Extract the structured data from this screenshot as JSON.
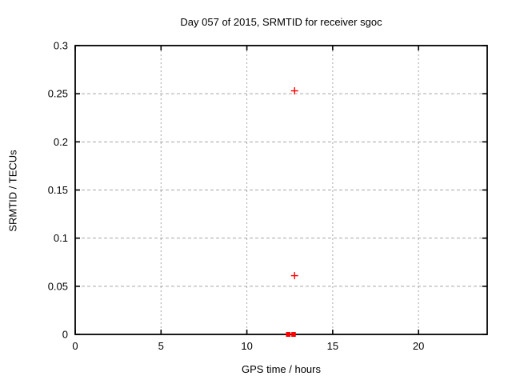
{
  "window": {
    "background_color": "#ffffff",
    "text_color": "#000000",
    "grid_color": "#a6a6a6",
    "border_color": "#000000"
  },
  "chart_data": {
    "type": "scatter",
    "title": "Day 057 of 2015, SRMTID for receiver sgoc",
    "xlabel": "GPS time / hours",
    "ylabel": "SRMTID / TECUs",
    "xlim": [
      0,
      24
    ],
    "ylim": [
      0,
      0.3
    ],
    "xticks": [
      0,
      5,
      10,
      15,
      20
    ],
    "xtick_labels": [
      "0",
      "5",
      "10",
      "15",
      "20"
    ],
    "yticks": [
      0,
      0.05,
      0.1,
      0.15,
      0.2,
      0.25,
      0.3
    ],
    "ytick_labels": [
      "0",
      "0.05",
      "0.1",
      "0.15",
      "0.2",
      "0.25",
      "0.3"
    ],
    "grid": true,
    "legend": null,
    "marker": "plus",
    "marker_color": "#ff0000",
    "series": [
      {
        "name": "SRMTID",
        "points": [
          {
            "x": 12.78,
            "y": 0.253
          },
          {
            "x": 12.78,
            "y": 0.061
          }
        ]
      }
    ],
    "zero_line_clusters": [
      {
        "x": 12.41,
        "y": 0,
        "appearance": "dense overlapping plus markers forming solid square"
      },
      {
        "x": 12.72,
        "y": 0,
        "appearance": "dense overlapping plus markers forming solid square"
      }
    ]
  }
}
